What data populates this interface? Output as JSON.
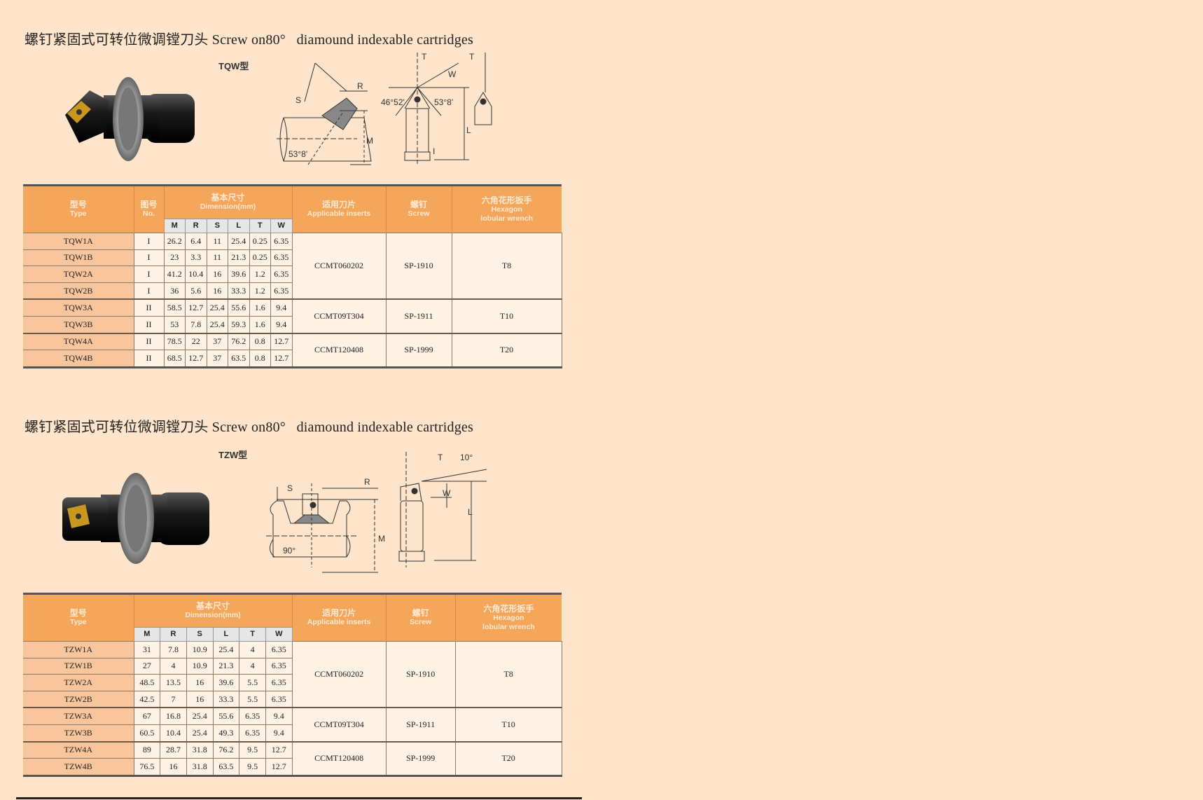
{
  "colors": {
    "background": "#fde4cb",
    "header": "#f4a65a",
    "type_column": "#f8c59c",
    "cell": "#fdf2e4"
  },
  "sections": [
    {
      "title": "螺钉紧固式可转位微调镗刀头 Screw on80°   diamound indexable cartridges",
      "type_label": "TQW型",
      "diagram_labels": {
        "s": "S",
        "r": "R",
        "m": "M",
        "angle_a": "53°8'",
        "t1": "T",
        "t2": "T",
        "angle_b": "46°52'",
        "angle_c": "53°8'",
        "w": "W",
        "l": "L",
        "i": "I"
      },
      "headers": {
        "type_cn": "型号",
        "type_en": "Type",
        "no_cn": "图号",
        "no_en": "No.",
        "dim_cn": "基本尺寸",
        "dim_en": "Dimension(mm)",
        "dims": [
          "M",
          "R",
          "S",
          "L",
          "T",
          "W"
        ],
        "insert_cn": "适用刀片",
        "insert_en": "Applicable inserts",
        "screw_cn": "螺钉",
        "screw_en": "Screw",
        "wrench_cn": "六角花形扳手",
        "wrench_en": "Hexagon",
        "wrench_en2": "lobular wrench"
      },
      "rows": [
        {
          "type": "TQW1A",
          "no": "I",
          "dims": [
            "26.2",
            "6.4",
            "11",
            "25.4",
            "0.25",
            "6.35"
          ]
        },
        {
          "type": "TQW1B",
          "no": "I",
          "dims": [
            "23",
            "3.3",
            "11",
            "21.3",
            "0.25",
            "6.35"
          ]
        },
        {
          "type": "TQW2A",
          "no": "I",
          "dims": [
            "41.2",
            "10.4",
            "16",
            "39.6",
            "1.2",
            "6.35"
          ]
        },
        {
          "type": "TQW2B",
          "no": "I",
          "dims": [
            "36",
            "5.6",
            "16",
            "33.3",
            "1.2",
            "6.35"
          ]
        },
        {
          "type": "TQW3A",
          "no": "II",
          "dims": [
            "58.5",
            "12.7",
            "25.4",
            "55.6",
            "1.6",
            "9.4"
          ]
        },
        {
          "type": "TQW3B",
          "no": "II",
          "dims": [
            "53",
            "7.8",
            "25.4",
            "59.3",
            "1.6",
            "9.4"
          ]
        },
        {
          "type": "TQW4A",
          "no": "II",
          "dims": [
            "78.5",
            "22",
            "37",
            "76.2",
            "0.8",
            "12.7"
          ]
        },
        {
          "type": "TQW4B",
          "no": "II",
          "dims": [
            "68.5",
            "12.7",
            "37",
            "63.5",
            "0.8",
            "12.7"
          ]
        }
      ],
      "groups": [
        {
          "insert": "CCMT060202",
          "screw": "SP-1910",
          "wrench": "T8",
          "span": 4
        },
        {
          "insert": "CCMT09T304",
          "screw": "SP-1911",
          "wrench": "T10",
          "span": 2
        },
        {
          "insert": "CCMT120408",
          "screw": "SP-1999",
          "wrench": "T20",
          "span": 2
        }
      ]
    },
    {
      "title": "螺钉紧固式可转位微调镗刀头 Screw on80°   diamound indexable cartridges",
      "type_label": "TZW型",
      "diagram_labels": {
        "s": "S",
        "r": "R",
        "m": "M",
        "angle_a": "90°",
        "t1": "T",
        "angle_b": "10°",
        "w": "W",
        "l": "L"
      },
      "headers": {
        "type_cn": "型号",
        "type_en": "Type",
        "dim_cn": "基本尺寸",
        "dim_en": "Dimension(mm)",
        "dims": [
          "M",
          "R",
          "S",
          "L",
          "T",
          "W"
        ],
        "insert_cn": "适用刀片",
        "insert_en": "Applicable inserts",
        "screw_cn": "螺钉",
        "screw_en": "Screw",
        "wrench_cn": "六角花形扳手",
        "wrench_en": "Hexagon",
        "wrench_en2": "lobular wrench"
      },
      "rows": [
        {
          "type": "TZW1A",
          "dims": [
            "31",
            "7.8",
            "10.9",
            "25.4",
            "4",
            "6.35"
          ]
        },
        {
          "type": "TZW1B",
          "dims": [
            "27",
            "4",
            "10.9",
            "21.3",
            "4",
            "6.35"
          ]
        },
        {
          "type": "TZW2A",
          "dims": [
            "48.5",
            "13.5",
            "16",
            "39.6",
            "5.5",
            "6.35"
          ]
        },
        {
          "type": "TZW2B",
          "dims": [
            "42.5",
            "7",
            "16",
            "33.3",
            "5.5",
            "6.35"
          ]
        },
        {
          "type": "TZW3A",
          "dims": [
            "67",
            "16.8",
            "25.4",
            "55.6",
            "6.35",
            "9.4"
          ]
        },
        {
          "type": "TZW3B",
          "dims": [
            "60.5",
            "10.4",
            "25.4",
            "49.3",
            "6.35",
            "9.4"
          ]
        },
        {
          "type": "TZW4A",
          "dims": [
            "89",
            "28.7",
            "31.8",
            "76.2",
            "9.5",
            "12.7"
          ]
        },
        {
          "type": "TZW4B",
          "dims": [
            "76.5",
            "16",
            "31.8",
            "63.5",
            "9.5",
            "12.7"
          ]
        }
      ],
      "groups": [
        {
          "insert": "CCMT060202",
          "screw": "SP-1910",
          "wrench": "T8",
          "span": 4
        },
        {
          "insert": "CCMT09T304",
          "screw": "SP-1911",
          "wrench": "T10",
          "span": 2
        },
        {
          "insert": "CCMT120408",
          "screw": "SP-1999",
          "wrench": "T20",
          "span": 2
        }
      ]
    }
  ]
}
